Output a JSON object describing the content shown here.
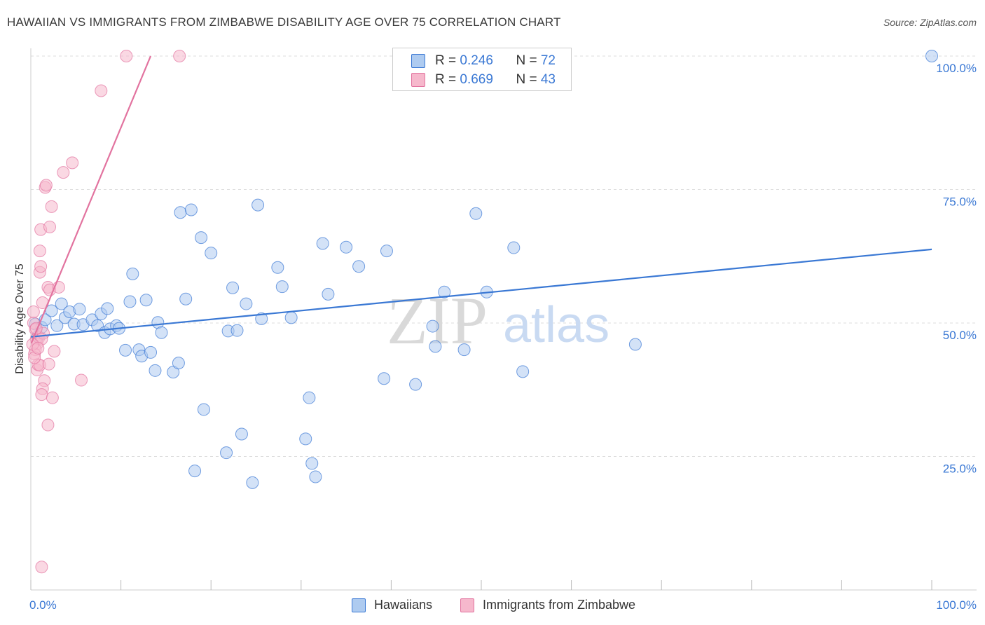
{
  "title": "HAWAIIAN VS IMMIGRANTS FROM ZIMBABWE DISABILITY AGE OVER 75 CORRELATION CHART",
  "source": "Source: ZipAtlas.com",
  "watermark": {
    "zip": "ZIP",
    "atlas": "atlas"
  },
  "legend": {
    "series1": {
      "r_label": "R = ",
      "r_value": "0.246",
      "n_label": "N = ",
      "n_value": "72"
    },
    "series2": {
      "r_label": "R = ",
      "r_value": "0.669",
      "n_label": "N = ",
      "n_value": "43"
    }
  },
  "chart_data": {
    "type": "scatter",
    "title": "HAWAIIAN VS IMMIGRANTS FROM ZIMBABWE DISABILITY AGE OVER 75 CORRELATION CHART",
    "xlabel": "",
    "ylabel": "Disability Age Over 75",
    "xlim": [
      0,
      100
    ],
    "ylim": [
      0,
      100
    ],
    "x_tick_labels": [
      "0.0%",
      "100.0%"
    ],
    "y_ticks": [
      25,
      50,
      75,
      100
    ],
    "y_tick_labels": [
      "25.0%",
      "50.0%",
      "75.0%",
      "100.0%"
    ],
    "colors": {
      "hawaiians": "#3a78d4",
      "zimbabwe": "#e2739f",
      "hawaiians_fill": "#aecbf0",
      "zimbabwe_fill": "#f6b8cc"
    },
    "series": [
      {
        "name": "Hawaiians",
        "trend": {
          "x": [
            0,
            100
          ],
          "y": [
            47.4,
            63.8
          ]
        },
        "points": [
          [
            0.5,
            49.8
          ],
          [
            0.8,
            47.5
          ],
          [
            1.2,
            49.2
          ],
          [
            1.6,
            50.6
          ],
          [
            2.3,
            52.3
          ],
          [
            2.9,
            49.5
          ],
          [
            3.4,
            53.6
          ],
          [
            3.8,
            51.0
          ],
          [
            4.3,
            52.1
          ],
          [
            4.8,
            49.8
          ],
          [
            5.4,
            52.6
          ],
          [
            5.8,
            49.7
          ],
          [
            6.8,
            50.6
          ],
          [
            7.4,
            49.5
          ],
          [
            7.8,
            51.7
          ],
          [
            8.2,
            48.2
          ],
          [
            8.5,
            52.7
          ],
          [
            8.8,
            48.9
          ],
          [
            9.5,
            49.5
          ],
          [
            9.8,
            49.0
          ],
          [
            10.5,
            44.9
          ],
          [
            11.0,
            54.0
          ],
          [
            11.3,
            59.2
          ],
          [
            12.0,
            45.0
          ],
          [
            12.3,
            43.8
          ],
          [
            12.8,
            54.3
          ],
          [
            13.3,
            44.5
          ],
          [
            13.8,
            41.1
          ],
          [
            14.1,
            50.1
          ],
          [
            14.5,
            48.2
          ],
          [
            15.8,
            40.8
          ],
          [
            16.4,
            42.5
          ],
          [
            16.6,
            70.7
          ],
          [
            17.2,
            54.5
          ],
          [
            17.8,
            71.2
          ],
          [
            18.9,
            66.0
          ],
          [
            19.2,
            33.8
          ],
          [
            20.0,
            63.1
          ],
          [
            21.7,
            25.7
          ],
          [
            21.9,
            48.5
          ],
          [
            22.4,
            56.6
          ],
          [
            22.9,
            48.6
          ],
          [
            23.4,
            29.2
          ],
          [
            23.9,
            53.6
          ],
          [
            24.6,
            20.1
          ],
          [
            25.2,
            72.1
          ],
          [
            25.6,
            50.8
          ],
          [
            27.4,
            60.4
          ],
          [
            27.9,
            56.8
          ],
          [
            28.9,
            51.0
          ],
          [
            30.5,
            28.3
          ],
          [
            30.9,
            36.0
          ],
          [
            31.2,
            23.7
          ],
          [
            31.6,
            21.2
          ],
          [
            32.4,
            64.9
          ],
          [
            33.0,
            55.4
          ],
          [
            35.0,
            64.2
          ],
          [
            36.4,
            60.6
          ],
          [
            39.2,
            39.6
          ],
          [
            39.5,
            63.5
          ],
          [
            42.7,
            38.5
          ],
          [
            44.6,
            49.4
          ],
          [
            44.9,
            45.6
          ],
          [
            45.9,
            55.8
          ],
          [
            48.1,
            45.0
          ],
          [
            49.4,
            70.5
          ],
          [
            50.6,
            55.8
          ],
          [
            53.6,
            64.1
          ],
          [
            54.6,
            40.9
          ],
          [
            67.1,
            46.0
          ],
          [
            100,
            100.0
          ],
          [
            18.2,
            22.3
          ]
        ]
      },
      {
        "name": "Immigrants from Zimbabwe",
        "trend": {
          "x": [
            0.05,
            13.3
          ],
          "y": [
            46.2,
            100
          ]
        },
        "points": [
          [
            0.3,
            52.1
          ],
          [
            0.3,
            50.0
          ],
          [
            0.5,
            48.8
          ],
          [
            0.6,
            47.0
          ],
          [
            0.7,
            46.1
          ],
          [
            0.5,
            45.0
          ],
          [
            0.4,
            44.2
          ],
          [
            0.7,
            41.2
          ],
          [
            0.8,
            42.2
          ],
          [
            0.9,
            47.3
          ],
          [
            1.0,
            59.5
          ],
          [
            1.1,
            60.6
          ],
          [
            1.0,
            63.5
          ],
          [
            1.1,
            67.5
          ],
          [
            1.3,
            53.8
          ],
          [
            1.4,
            48.1
          ],
          [
            1.2,
            47.0
          ],
          [
            1.0,
            42.1
          ],
          [
            1.5,
            39.2
          ],
          [
            1.3,
            37.7
          ],
          [
            1.2,
            36.6
          ],
          [
            1.6,
            75.4
          ],
          [
            1.7,
            75.8
          ],
          [
            1.9,
            56.7
          ],
          [
            2.1,
            56.2
          ],
          [
            2.0,
            42.3
          ],
          [
            1.9,
            30.9
          ],
          [
            2.1,
            68.0
          ],
          [
            2.3,
            71.8
          ],
          [
            2.4,
            36.0
          ],
          [
            2.6,
            44.7
          ],
          [
            3.1,
            56.7
          ],
          [
            3.6,
            78.2
          ],
          [
            4.6,
            80.0
          ],
          [
            5.6,
            39.3
          ],
          [
            7.8,
            93.5
          ],
          [
            10.6,
            100.0
          ],
          [
            16.5,
            100.0
          ],
          [
            1.2,
            4.3
          ],
          [
            0.2,
            46.0
          ],
          [
            0.4,
            43.5
          ],
          [
            0.6,
            49.0
          ],
          [
            0.8,
            45.3
          ]
        ]
      }
    ]
  },
  "bottom_legend": [
    {
      "label": "Hawaiians"
    },
    {
      "label": "Immigrants from Zimbabwe"
    }
  ]
}
